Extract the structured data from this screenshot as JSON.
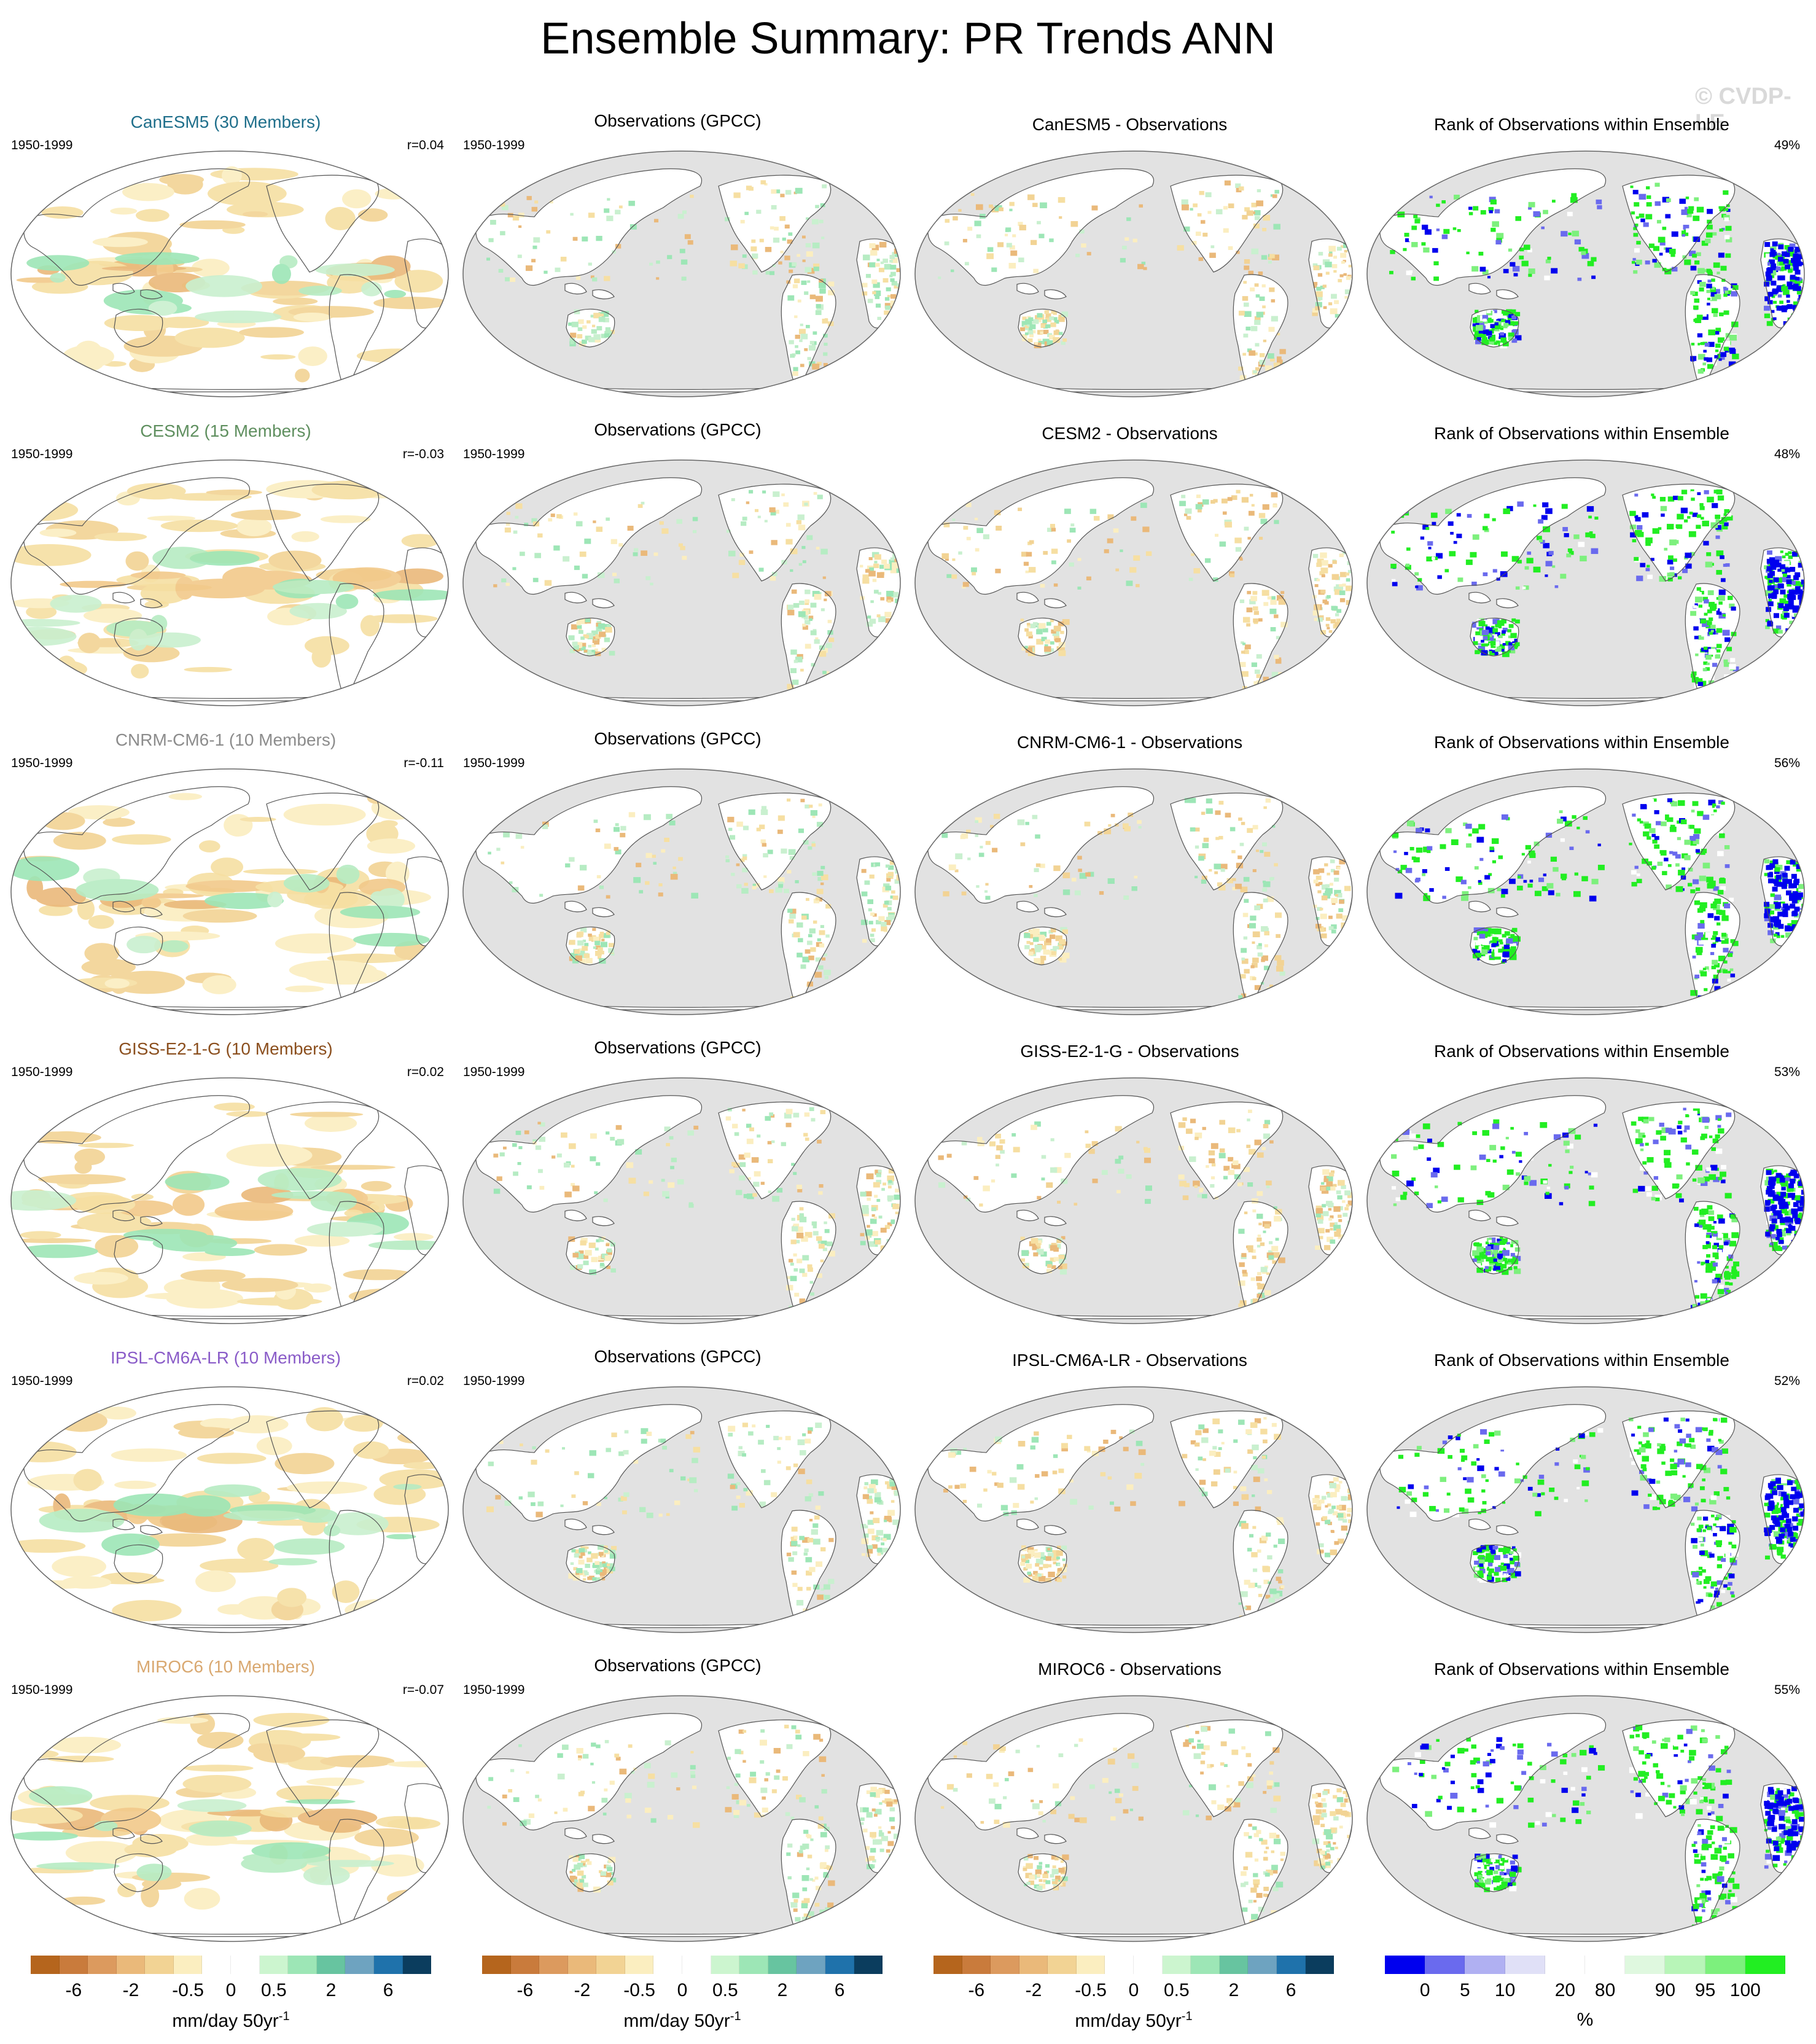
{
  "title": "Ensemble Summary: PR Trends ANN",
  "watermark": "© CVDP-LE",
  "chart_data": {
    "type": "heatmap",
    "title": "Ensemble Summary: PR Trends ANN",
    "period": "1950-1999",
    "rows": [
      {
        "model_title": "CanESM5 (30 Members)",
        "model_color": "#1f6f8b",
        "corr": "r=0.04",
        "obs_title": "Observations (GPCC)",
        "diff_title": "CanESM5 - Observations",
        "rank_title": "Rank of Observations within Ensemble",
        "rank_pct": "49%"
      },
      {
        "model_title": "CESM2 (15 Members)",
        "model_color": "#5f8f5f",
        "corr": "r=-0.03",
        "obs_title": "Observations (GPCC)",
        "diff_title": "CESM2 - Observations",
        "rank_title": "Rank of Observations within Ensemble",
        "rank_pct": "48%"
      },
      {
        "model_title": "CNRM-CM6-1 (10 Members)",
        "model_color": "#8c8c8c",
        "corr": "r=-0.11",
        "obs_title": "Observations (GPCC)",
        "diff_title": "CNRM-CM6-1 - Observations",
        "rank_title": "Rank of Observations within Ensemble",
        "rank_pct": "56%"
      },
      {
        "model_title": "GISS-E2-1-G (10 Members)",
        "model_color": "#8b4f1e",
        "corr": "r=0.02",
        "obs_title": "Observations (GPCC)",
        "diff_title": "GISS-E2-1-G - Observations",
        "rank_title": "Rank of Observations within Ensemble",
        "rank_pct": "53%"
      },
      {
        "model_title": "IPSL-CM6A-LR (10 Members)",
        "model_color": "#8a5cc8",
        "corr": "r=0.02",
        "obs_title": "Observations (GPCC)",
        "diff_title": "IPSL-CM6A-LR - Observations",
        "rank_title": "Rank of Observations within Ensemble",
        "rank_pct": "52%"
      },
      {
        "model_title": "MIROC6 (10 Members)",
        "model_color": "#d9a870",
        "corr": "r=-0.07",
        "obs_title": "Observations (GPCC)",
        "diff_title": "MIROC6 - Observations",
        "rank_title": "Rank of Observations within Ensemble",
        "rank_pct": "55%"
      }
    ],
    "trend_colorbar": {
      "colors": [
        "#b5651d",
        "#c97b3c",
        "#dc9a5e",
        "#eab97a",
        "#f2d394",
        "#fbeec0",
        "#ffffff",
        "#ffffff",
        "#ccf5cf",
        "#9de6b6",
        "#67c4a0",
        "#6ea3c0",
        "#1f72ab",
        "#0b3d5e"
      ],
      "tick_labels": [
        "-6",
        "-2",
        "-0.5",
        "0",
        "0.5",
        "2",
        "6"
      ],
      "label": "mm/day 50yr",
      "label_exp": "-1"
    },
    "rank_colorbar": {
      "colors": [
        "#0000ee",
        "#6a6aee",
        "#b0b0f2",
        "#e0e0f7",
        "#ffffff",
        "#ffffff",
        "#dff8df",
        "#b8f5b8",
        "#7df07d",
        "#22ee22"
      ],
      "tick_labels": [
        "0",
        "5",
        "10",
        "20",
        "80",
        "90",
        "95",
        "100"
      ],
      "label": "%"
    }
  }
}
